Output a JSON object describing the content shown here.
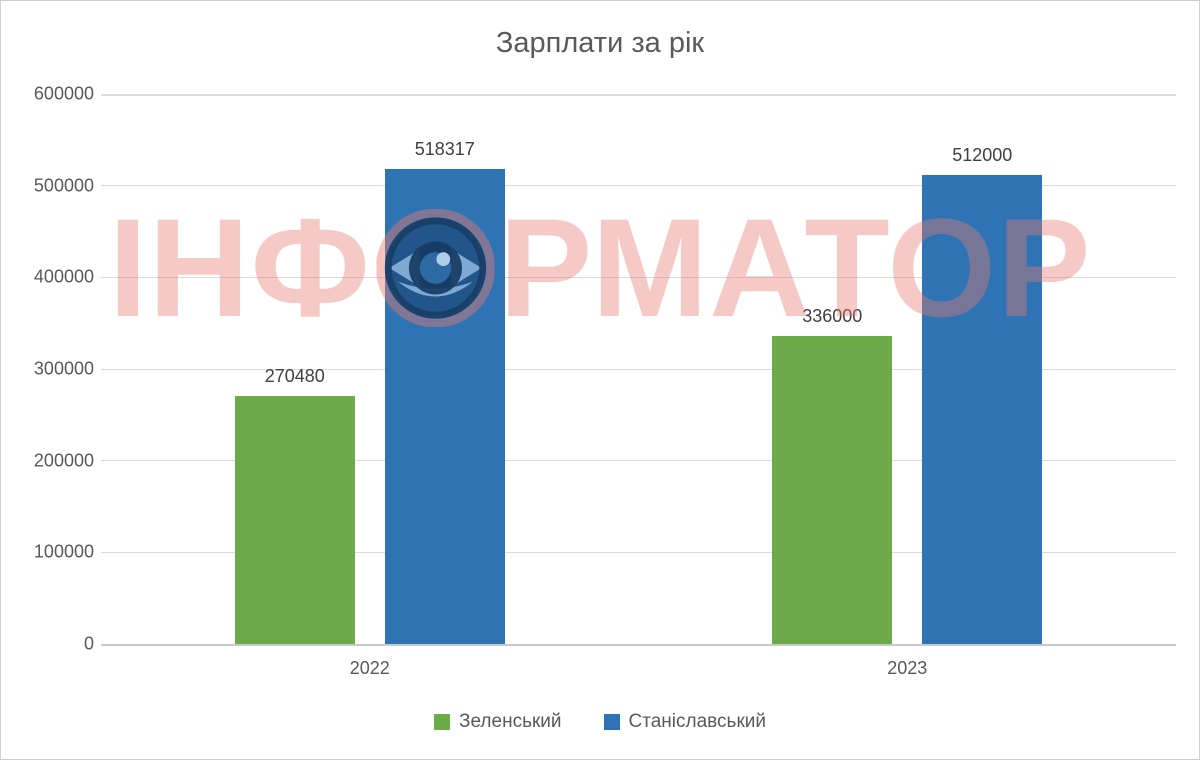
{
  "chart_data": {
    "type": "bar",
    "title": "Зарплати за рік",
    "categories": [
      "2022",
      "2023"
    ],
    "series": [
      {
        "id": "zelensky",
        "name": "Зеленський",
        "color": "#6dab4a",
        "values": [
          270480,
          336000
        ]
      },
      {
        "id": "stanislavsky",
        "name": "Станіславський",
        "color": "#2e74b5",
        "values": [
          518317,
          512000
        ]
      }
    ],
    "data_labels_shown": [
      "270480",
      "518317",
      "336000",
      "512000"
    ],
    "xlabel": "",
    "ylabel": "",
    "ylim": [
      0,
      600000
    ],
    "yticks": [
      0,
      100000,
      200000,
      300000,
      400000,
      500000,
      600000
    ],
    "grid": true,
    "legend_position": "bottom"
  },
  "watermark": {
    "text": "ІНФОРМАТОР",
    "text_before_eye": "ІНФ",
    "text_after_eye": "РМАТОР",
    "eye_icon": "eye-logo",
    "color": "#e77a70"
  },
  "colors": {
    "axis_text": "#595959",
    "data_label_text": "#3f3f3f",
    "gridline": "#d9d9d9",
    "background": "#ffffff"
  }
}
